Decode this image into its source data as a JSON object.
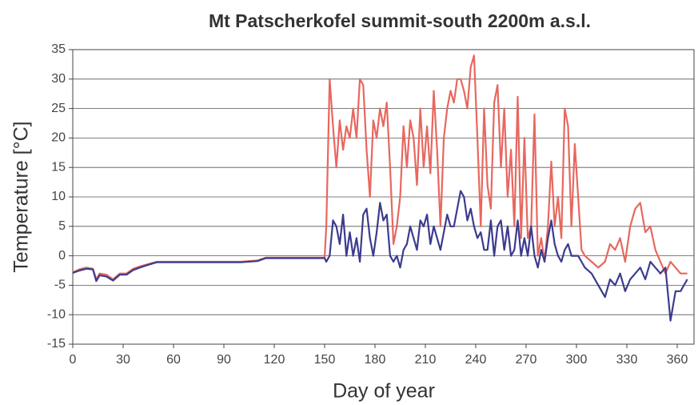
{
  "chart_data": {
    "type": "line",
    "title": "Mt Patscherkofel summit-south 2200m a.s.l.",
    "x_label": "Day of year",
    "y_label": "Temperature [°C]",
    "x": [
      0,
      4,
      8,
      12,
      14,
      16,
      20,
      24,
      28,
      32,
      36,
      40,
      44,
      50,
      60,
      70,
      80,
      90,
      100,
      110,
      115,
      120,
      130,
      140,
      150,
      151,
      153,
      155,
      157,
      159,
      161,
      163,
      165,
      167,
      169,
      171,
      173,
      175,
      177,
      179,
      181,
      183,
      185,
      187,
      189,
      191,
      193,
      195,
      197,
      199,
      201,
      203,
      205,
      207,
      209,
      211,
      213,
      215,
      217,
      219,
      221,
      223,
      225,
      227,
      229,
      231,
      233,
      235,
      237,
      239,
      241,
      243,
      245,
      247,
      249,
      251,
      253,
      255,
      257,
      259,
      261,
      263,
      265,
      267,
      269,
      271,
      273,
      275,
      277,
      279,
      281,
      283,
      285,
      287,
      289,
      291,
      293,
      295,
      297,
      299,
      301,
      303,
      305,
      309,
      313,
      317,
      320,
      323,
      326,
      329,
      332,
      335,
      338,
      341,
      344,
      347,
      350,
      353,
      356,
      359,
      362,
      366
    ],
    "series": [
      {
        "color": "#e8675e",
        "values": [
          -2.8,
          -2.3,
          -2,
          -2.2,
          -4,
          -3,
          -3.2,
          -4,
          -3,
          -3,
          -2.2,
          -1.8,
          -1.5,
          -1,
          -1,
          -1,
          -1,
          -1,
          -1,
          -0.8,
          -0.3,
          -0.3,
          -0.3,
          -0.3,
          -0.3,
          5,
          30,
          22,
          15,
          23,
          18,
          22,
          20,
          25,
          20,
          30,
          29,
          18,
          10,
          23,
          20,
          25,
          22,
          26,
          15,
          2,
          5,
          10,
          22,
          15,
          23,
          20,
          12,
          25,
          15,
          22,
          14,
          28,
          18,
          5,
          20,
          25,
          28,
          26,
          30,
          30,
          28,
          25,
          32,
          34,
          20,
          5,
          25,
          12,
          8,
          26,
          29,
          15,
          25,
          10,
          18,
          5,
          27,
          3,
          20,
          3,
          5,
          24,
          0,
          3,
          -1,
          5,
          16,
          5,
          10,
          3,
          25,
          22,
          5,
          19,
          10,
          1,
          0,
          -1,
          -2,
          -1,
          2,
          1,
          3,
          -1,
          5,
          8,
          9,
          4,
          5,
          1,
          -1,
          -3,
          -1,
          -2,
          -3,
          -3
        ]
      },
      {
        "color": "#3b3b8f",
        "values": [
          -2.9,
          -2.5,
          -2.2,
          -2.3,
          -4.3,
          -3.3,
          -3.5,
          -4.2,
          -3.2,
          -3.2,
          -2.4,
          -2,
          -1.6,
          -1.1,
          -1.1,
          -1.1,
          -1.1,
          -1.1,
          -1.1,
          -0.9,
          -0.4,
          -0.4,
          -0.4,
          -0.4,
          -0.4,
          -1,
          0,
          6,
          5,
          2,
          7,
          0,
          4,
          0,
          3,
          -1,
          7,
          8,
          3,
          0,
          4,
          9,
          6,
          7,
          0,
          -1,
          0,
          -2,
          1,
          2,
          5,
          3,
          1,
          6,
          5,
          7,
          2,
          5,
          3,
          1,
          4,
          7,
          5,
          5,
          8,
          11,
          10,
          6,
          8,
          5,
          3,
          4,
          1,
          1,
          6,
          0,
          5,
          6,
          1,
          5,
          0,
          1,
          6,
          0,
          3,
          0,
          5,
          0,
          -2,
          1,
          -1,
          3,
          6,
          2,
          0,
          -1,
          1,
          2,
          0,
          0,
          0,
          -1,
          -2,
          -3,
          -5,
          -7,
          -4,
          -5,
          -3,
          -6,
          -4,
          -3,
          -2,
          -4,
          -1,
          -2,
          -3,
          -2,
          -11,
          -6,
          -6,
          -4
        ]
      }
    ],
    "xlim": [
      0,
      370
    ],
    "xticks": [
      0,
      30,
      60,
      90,
      120,
      150,
      180,
      210,
      240,
      270,
      300,
      330,
      360
    ],
    "ylim": [
      -15,
      35
    ],
    "yticks": [
      -15,
      -10,
      -5,
      0,
      5,
      10,
      15,
      20,
      25,
      30,
      35
    ],
    "grid": true
  }
}
